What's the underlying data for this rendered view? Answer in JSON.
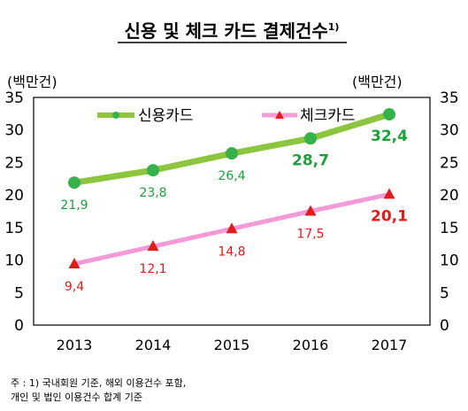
{
  "title": "신용 및 체크 카드 결제건수",
  "title_note": "1)",
  "unit_left": "(백만건)",
  "unit_right": "(백만건)",
  "notes": [
    "주 : 1) 국내회원 기준, 해외 이용건수 포함,",
    "개인 및 법인 이용건수 합계 기준"
  ],
  "chart_data": {
    "type": "line",
    "x": [
      "2013",
      "2014",
      "2015",
      "2016",
      "2017"
    ],
    "ylim": [
      0,
      35
    ],
    "yticks": [
      0,
      5,
      10,
      15,
      20,
      25,
      30,
      35
    ],
    "grid": false,
    "legend_position": "top",
    "series": [
      {
        "name": "신용카드",
        "color": "#8cc63f",
        "marker_color": "#36b24a",
        "marker": "circle",
        "values": [
          21.9,
          23.8,
          26.4,
          28.7,
          32.4
        ],
        "labels": [
          "21,9",
          "23,8",
          "26,4",
          "28,7",
          "32,4"
        ]
      },
      {
        "name": "체크카드",
        "color": "#f49ad8",
        "marker_color": "#e21b1b",
        "marker": "triangle",
        "values": [
          9.4,
          12.1,
          14.8,
          17.5,
          20.1
        ],
        "labels": [
          "9,4",
          "12,1",
          "14,8",
          "17,5",
          "20,1"
        ]
      }
    ]
  }
}
